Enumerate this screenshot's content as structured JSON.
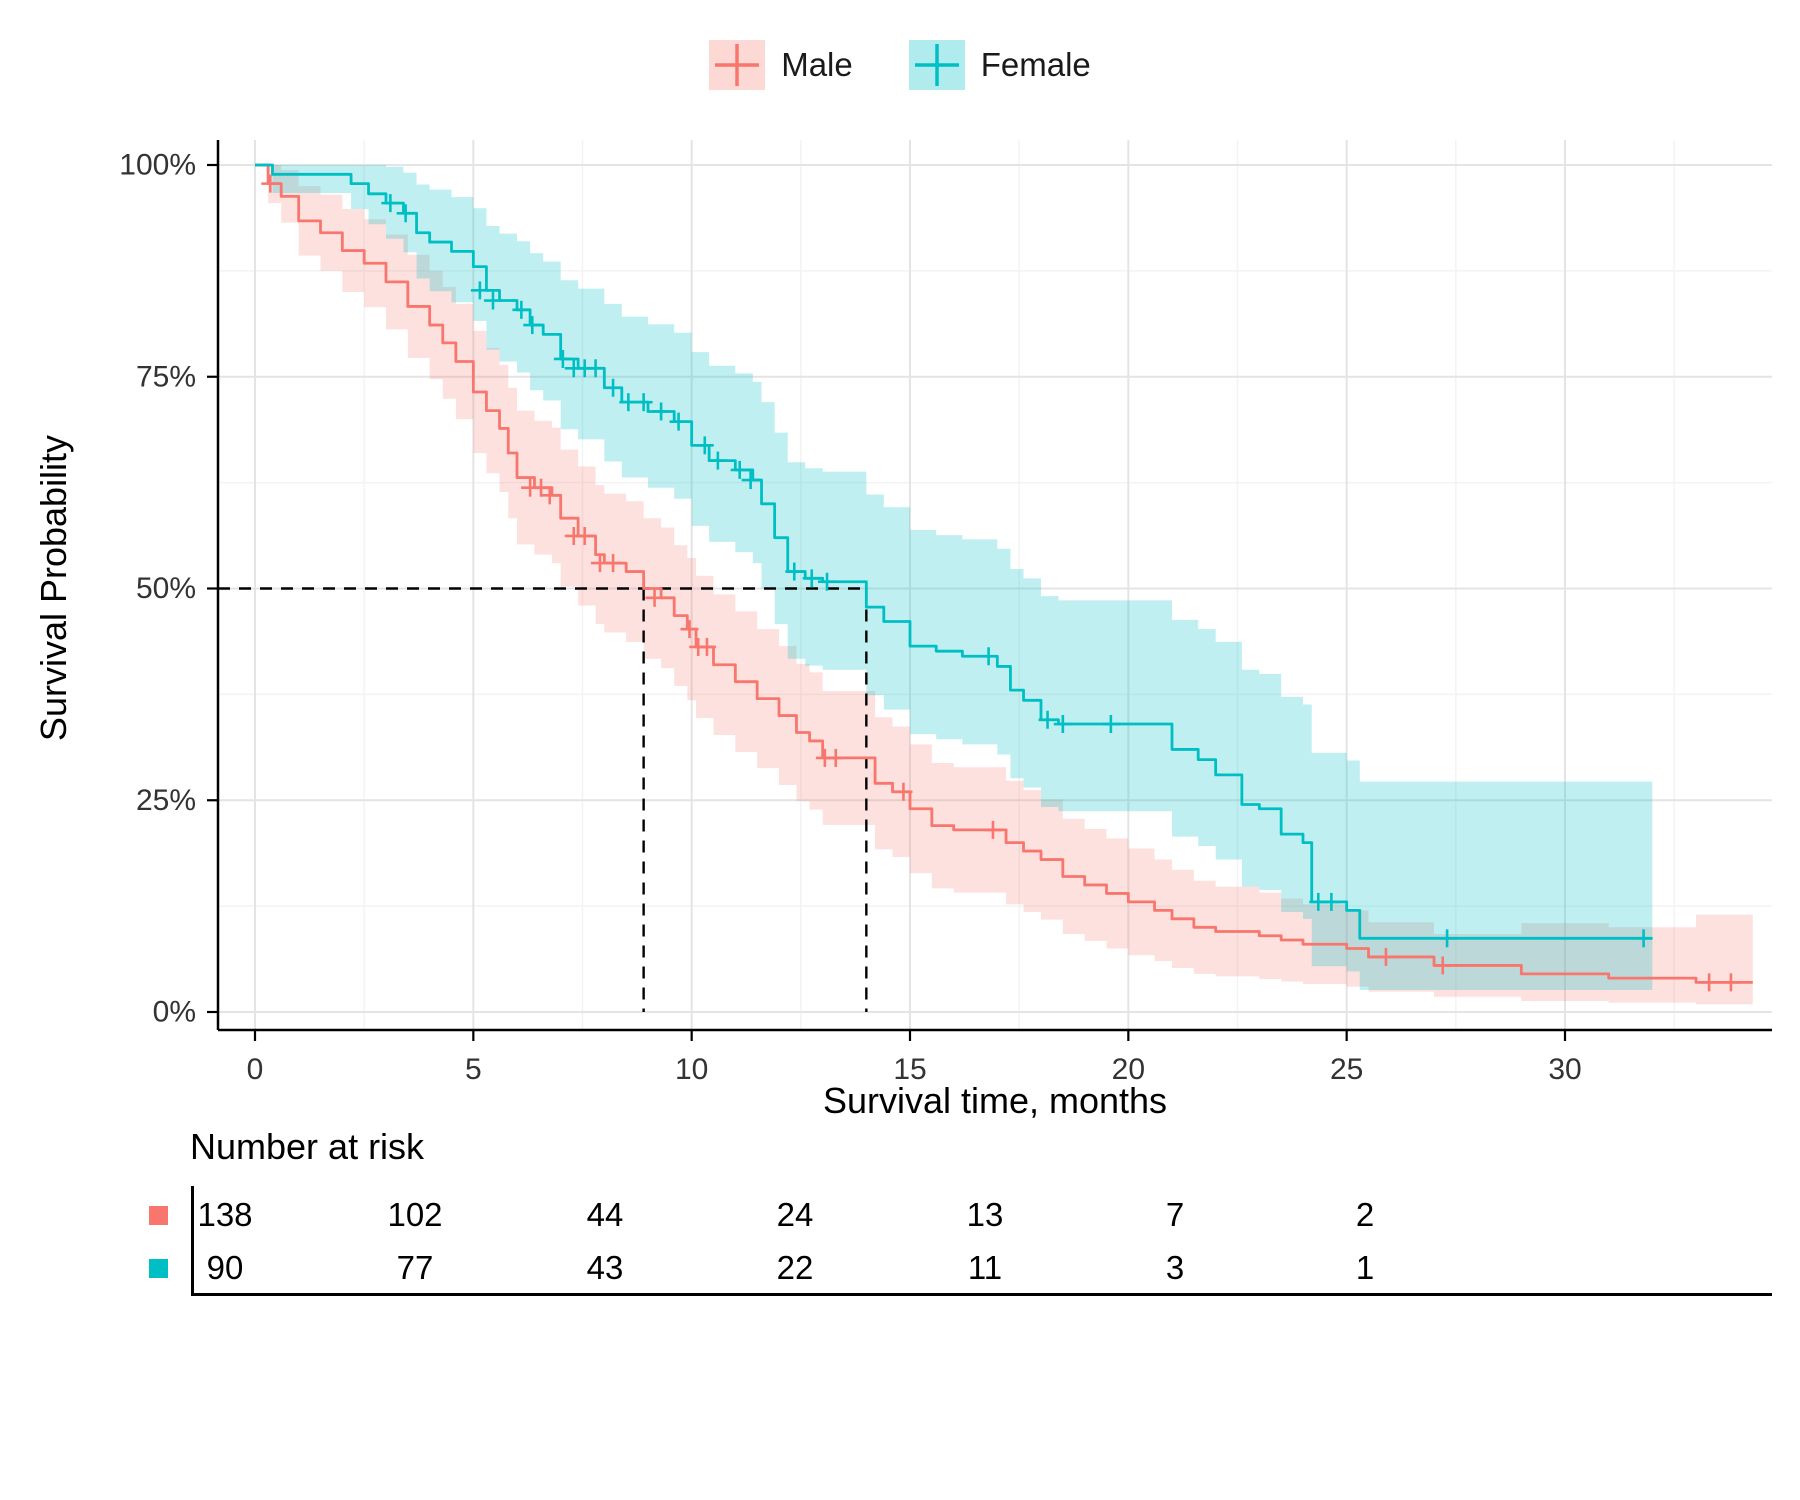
{
  "chart_data": {
    "type": "line",
    "subtype": "kaplan-meier-survival-step",
    "title": "",
    "xlabel": "Survival time, months",
    "ylabel": "Survival Probability",
    "xlim": [
      0,
      34.5
    ],
    "ylim": [
      0,
      1
    ],
    "x_ticks": [
      0,
      5,
      10,
      15,
      20,
      25,
      30
    ],
    "y_ticks": {
      "values": [
        0,
        0.25,
        0.5,
        0.75,
        1
      ],
      "labels": [
        "0%",
        "25%",
        "50%",
        "75%",
        "100%"
      ]
    },
    "grid": true,
    "legend_position": "top",
    "confidence_interval": true,
    "medians": {
      "Male": 8.9,
      "Female": 14
    },
    "median_line_style": "dashed",
    "series": [
      {
        "name": "Male",
        "color": "#F8766D",
        "fill_opacity": 0.22,
        "steps": [
          [
            0,
            1,
            1,
            1
          ],
          [
            0.3,
            0.978,
            0.955,
            1
          ],
          [
            0.6,
            0.963,
            0.932,
            0.994
          ],
          [
            1,
            0.934,
            0.893,
            0.975
          ],
          [
            1.5,
            0.92,
            0.875,
            0.965
          ],
          [
            2,
            0.899,
            0.85,
            0.948
          ],
          [
            2.5,
            0.884,
            0.832,
            0.936
          ],
          [
            3,
            0.862,
            0.806,
            0.918
          ],
          [
            3.5,
            0.833,
            0.772,
            0.894
          ],
          [
            4,
            0.811,
            0.747,
            0.875
          ],
          [
            4.3,
            0.79,
            0.724,
            0.856
          ],
          [
            4.6,
            0.768,
            0.7,
            0.836
          ],
          [
            5,
            0.732,
            0.66,
            0.804
          ],
          [
            5.3,
            0.71,
            0.636,
            0.784
          ],
          [
            5.6,
            0.689,
            0.614,
            0.764
          ],
          [
            5.8,
            0.66,
            0.583,
            0.737
          ],
          [
            6,
            0.631,
            0.552,
            0.71
          ],
          [
            6.4,
            0.619,
            0.54,
            0.698
          ],
          [
            6.8,
            0.61,
            0.53,
            0.69
          ],
          [
            7,
            0.583,
            0.502,
            0.664
          ],
          [
            7.4,
            0.562,
            0.48,
            0.644
          ],
          [
            7.8,
            0.54,
            0.458,
            0.622
          ],
          [
            8,
            0.53,
            0.448,
            0.612
          ],
          [
            8.5,
            0.52,
            0.437,
            0.603
          ],
          [
            8.9,
            0.5,
            0.417,
            0.583
          ],
          [
            9.3,
            0.489,
            0.406,
            0.572
          ],
          [
            9.6,
            0.468,
            0.385,
            0.551
          ],
          [
            9.9,
            0.452,
            0.368,
            0.536
          ],
          [
            10.1,
            0.431,
            0.347,
            0.515
          ],
          [
            10.5,
            0.41,
            0.327,
            0.493
          ],
          [
            11,
            0.39,
            0.307,
            0.473
          ],
          [
            11.5,
            0.37,
            0.288,
            0.452
          ],
          [
            12,
            0.35,
            0.268,
            0.432
          ],
          [
            12.4,
            0.33,
            0.249,
            0.411
          ],
          [
            12.7,
            0.32,
            0.239,
            0.401
          ],
          [
            13,
            0.3,
            0.221,
            0.379
          ],
          [
            14.2,
            0.27,
            0.192,
            0.348
          ],
          [
            14.6,
            0.26,
            0.183,
            0.337
          ],
          [
            15,
            0.24,
            0.164,
            0.316
          ],
          [
            15.5,
            0.22,
            0.146,
            0.294
          ],
          [
            16,
            0.215,
            0.141,
            0.289
          ],
          [
            17.2,
            0.2,
            0.127,
            0.273
          ],
          [
            17.6,
            0.19,
            0.118,
            0.262
          ],
          [
            18,
            0.18,
            0.109,
            0.251
          ],
          [
            18.5,
            0.16,
            0.092,
            0.228
          ],
          [
            19,
            0.15,
            0.084,
            0.216
          ],
          [
            19.5,
            0.14,
            0.075,
            0.205
          ],
          [
            20,
            0.13,
            0.067,
            0.193
          ],
          [
            20.6,
            0.12,
            0.06,
            0.18
          ],
          [
            21,
            0.11,
            0.052,
            0.168
          ],
          [
            21.5,
            0.1,
            0.045,
            0.155
          ],
          [
            22,
            0.095,
            0.042,
            0.148
          ],
          [
            23,
            0.09,
            0.039,
            0.141
          ],
          [
            23.5,
            0.085,
            0.036,
            0.134
          ],
          [
            24,
            0.08,
            0.033,
            0.127
          ],
          [
            25,
            0.075,
            0.03,
            0.12
          ],
          [
            25.5,
            0.065,
            0.024,
            0.106
          ],
          [
            27,
            0.055,
            0.018,
            0.092
          ],
          [
            29,
            0.045,
            0.013,
            0.105
          ],
          [
            31,
            0.04,
            0.011,
            0.1
          ],
          [
            33,
            0.035,
            0.009,
            0.115
          ],
          [
            34.3,
            0.035,
            0.009,
            0.115
          ]
        ],
        "censors": [
          [
            0.35,
            0.978
          ],
          [
            6.3,
            0.619
          ],
          [
            6.55,
            0.619
          ],
          [
            6.75,
            0.61
          ],
          [
            7.3,
            0.562
          ],
          [
            7.55,
            0.562
          ],
          [
            7.9,
            0.53
          ],
          [
            8.2,
            0.53
          ],
          [
            9.15,
            0.489
          ],
          [
            9.95,
            0.452
          ],
          [
            10.15,
            0.431
          ],
          [
            10.35,
            0.431
          ],
          [
            13.05,
            0.3
          ],
          [
            13.3,
            0.3
          ],
          [
            14.85,
            0.26
          ],
          [
            16.9,
            0.215
          ],
          [
            25.9,
            0.065
          ],
          [
            27.2,
            0.055
          ],
          [
            33.3,
            0.035
          ],
          [
            33.8,
            0.035
          ]
        ]
      },
      {
        "name": "Female",
        "color": "#00BFC4",
        "fill_opacity": 0.25,
        "steps": [
          [
            0,
            1,
            1,
            1
          ],
          [
            0.4,
            0.989,
            0.967,
            1
          ],
          [
            2.2,
            0.978,
            0.948,
            1
          ],
          [
            2.6,
            0.966,
            0.93,
            1
          ],
          [
            3,
            0.955,
            0.913,
            0.998
          ],
          [
            3.4,
            0.943,
            0.897,
            0.991
          ],
          [
            3.7,
            0.92,
            0.866,
            0.977
          ],
          [
            4,
            0.909,
            0.851,
            0.971
          ],
          [
            4.5,
            0.898,
            0.838,
            0.962
          ],
          [
            5,
            0.88,
            0.816,
            0.949
          ],
          [
            5.3,
            0.852,
            0.782,
            0.928
          ],
          [
            5.6,
            0.84,
            0.768,
            0.919
          ],
          [
            6,
            0.829,
            0.755,
            0.91
          ],
          [
            6.3,
            0.811,
            0.734,
            0.896
          ],
          [
            6.6,
            0.8,
            0.722,
            0.886
          ],
          [
            7,
            0.771,
            0.688,
            0.864
          ],
          [
            7.4,
            0.76,
            0.676,
            0.854
          ],
          [
            8,
            0.737,
            0.65,
            0.836
          ],
          [
            8.4,
            0.72,
            0.631,
            0.821
          ],
          [
            9,
            0.709,
            0.619,
            0.812
          ],
          [
            9.6,
            0.697,
            0.606,
            0.802
          ],
          [
            10,
            0.669,
            0.574,
            0.779
          ],
          [
            10.4,
            0.651,
            0.555,
            0.763
          ],
          [
            11,
            0.64,
            0.543,
            0.754
          ],
          [
            11.4,
            0.628,
            0.53,
            0.744
          ],
          [
            11.6,
            0.6,
            0.5,
            0.72
          ],
          [
            11.9,
            0.56,
            0.458,
            0.684
          ],
          [
            12.2,
            0.52,
            0.417,
            0.649
          ],
          [
            12.6,
            0.512,
            0.409,
            0.642
          ],
          [
            13,
            0.508,
            0.404,
            0.638
          ],
          [
            14,
            0.478,
            0.374,
            0.611
          ],
          [
            14.4,
            0.461,
            0.357,
            0.596
          ],
          [
            15,
            0.432,
            0.328,
            0.569
          ],
          [
            15.6,
            0.426,
            0.322,
            0.563
          ],
          [
            16.2,
            0.42,
            0.316,
            0.558
          ],
          [
            17,
            0.408,
            0.304,
            0.547
          ],
          [
            17.3,
            0.38,
            0.276,
            0.523
          ],
          [
            17.6,
            0.368,
            0.265,
            0.512
          ],
          [
            18,
            0.345,
            0.242,
            0.491
          ],
          [
            18.4,
            0.34,
            0.237,
            0.486
          ],
          [
            21,
            0.31,
            0.207,
            0.463
          ],
          [
            21.6,
            0.298,
            0.196,
            0.452
          ],
          [
            22,
            0.28,
            0.18,
            0.437
          ],
          [
            22.6,
            0.245,
            0.148,
            0.404
          ],
          [
            23,
            0.24,
            0.144,
            0.399
          ],
          [
            23.5,
            0.21,
            0.118,
            0.372
          ],
          [
            24,
            0.2,
            0.11,
            0.363
          ],
          [
            24.2,
            0.13,
            0.054,
            0.306
          ],
          [
            25,
            0.12,
            0.048,
            0.297
          ],
          [
            25.3,
            0.087,
            0.026,
            0.272
          ],
          [
            32,
            0.087,
            0.026,
            0.272
          ]
        ],
        "censors": [
          [
            3.1,
            0.955
          ],
          [
            3.45,
            0.943
          ],
          [
            5.15,
            0.852
          ],
          [
            5.45,
            0.84
          ],
          [
            6.1,
            0.829
          ],
          [
            6.35,
            0.811
          ],
          [
            7.05,
            0.771
          ],
          [
            7.3,
            0.76
          ],
          [
            7.55,
            0.76
          ],
          [
            7.8,
            0.76
          ],
          [
            8.2,
            0.737
          ],
          [
            8.55,
            0.72
          ],
          [
            8.9,
            0.72
          ],
          [
            9.3,
            0.709
          ],
          [
            9.7,
            0.697
          ],
          [
            10.3,
            0.669
          ],
          [
            10.6,
            0.651
          ],
          [
            11.1,
            0.64
          ],
          [
            11.35,
            0.628
          ],
          [
            12.35,
            0.52
          ],
          [
            12.75,
            0.512
          ],
          [
            13.1,
            0.508
          ],
          [
            16.8,
            0.42
          ],
          [
            18.15,
            0.345
          ],
          [
            18.5,
            0.34
          ],
          [
            19.6,
            0.34
          ],
          [
            24.35,
            0.13
          ],
          [
            24.65,
            0.13
          ],
          [
            27.3,
            0.087
          ],
          [
            31.8,
            0.087
          ]
        ]
      }
    ],
    "risk_table": {
      "title": "Number at risk",
      "time_points": [
        0,
        5,
        10,
        15,
        20,
        25,
        30
      ],
      "rows": [
        {
          "name": "Male",
          "color": "#F8766D",
          "values": [
            "138",
            "102",
            "44",
            "24",
            "13",
            "7",
            "2"
          ]
        },
        {
          "name": "Female",
          "color": "#00BFC4",
          "values": [
            "90",
            "77",
            "43",
            "22",
            "11",
            "3",
            "1"
          ]
        }
      ]
    }
  },
  "colors": {
    "male": "#F8766D",
    "female": "#00BFC4",
    "grid_major": "#E4E4E4",
    "grid_minor": "#F3F3F3",
    "axis": "#000000",
    "tick_label": "#333333",
    "median_line": "#000000"
  }
}
